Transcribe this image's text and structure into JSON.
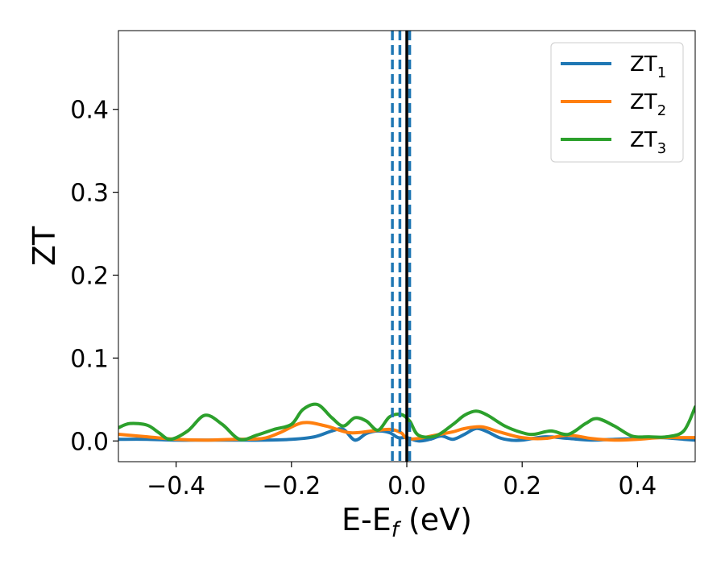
{
  "chart_data": {
    "type": "line",
    "xlabel_main": "E-E",
    "xlabel_sub": "f",
    "xlabel_unit": " (eV)",
    "ylabel": "ZT",
    "xlim": [
      -0.5,
      0.5
    ],
    "ylim": [
      -0.025,
      0.495
    ],
    "xticks": [
      -0.4,
      -0.2,
      0.0,
      0.2,
      0.4
    ],
    "xtick_labels": [
      "−0.4",
      "−0.2",
      "0.0",
      "0.2",
      "0.4"
    ],
    "yticks": [
      0.0,
      0.1,
      0.2,
      0.3,
      0.4
    ],
    "ytick_labels": [
      "0.0",
      "0.1",
      "0.2",
      "0.3",
      "0.4"
    ],
    "grid": false,
    "legend_position": "top-right",
    "vlines": [
      {
        "x": -0.025,
        "style": "dashed",
        "color": "#1f77b4"
      },
      {
        "x": -0.012,
        "style": "dashed",
        "color": "#1f77b4"
      },
      {
        "x": 0.005,
        "style": "dashed",
        "color": "#1f77b4"
      },
      {
        "x": 0.0,
        "style": "solid",
        "color": "#000000"
      }
    ],
    "series": [
      {
        "name": "ZT",
        "name_sub": "1",
        "color": "#1f77b4",
        "x": [
          -0.5,
          -0.45,
          -0.4,
          -0.35,
          -0.3,
          -0.25,
          -0.2,
          -0.16,
          -0.13,
          -0.11,
          -0.09,
          -0.07,
          -0.05,
          -0.03,
          -0.015,
          0.0,
          0.02,
          0.04,
          0.06,
          0.08,
          0.1,
          0.12,
          0.14,
          0.16,
          0.18,
          0.2,
          0.24,
          0.28,
          0.32,
          0.36,
          0.4,
          0.44,
          0.48,
          0.5
        ],
        "y": [
          0.002,
          0.002,
          0.001,
          0.001,
          0.001,
          0.001,
          0.002,
          0.005,
          0.012,
          0.014,
          0.001,
          0.009,
          0.012,
          0.01,
          0.004,
          0.004,
          0.0,
          0.002,
          0.006,
          0.002,
          0.008,
          0.015,
          0.011,
          0.004,
          0.001,
          0.001,
          0.005,
          0.003,
          0.001,
          0.002,
          0.003,
          0.004,
          0.002,
          0.001
        ]
      },
      {
        "name": "ZT",
        "name_sub": "2",
        "color": "#ff7f0e",
        "x": [
          -0.5,
          -0.45,
          -0.4,
          -0.35,
          -0.3,
          -0.25,
          -0.22,
          -0.18,
          -0.14,
          -0.1,
          -0.06,
          -0.03,
          -0.01,
          0.0,
          0.02,
          0.05,
          0.08,
          0.1,
          0.13,
          0.16,
          0.2,
          0.24,
          0.28,
          0.32,
          0.36,
          0.4,
          0.44,
          0.48,
          0.5
        ],
        "y": [
          0.008,
          0.005,
          0.002,
          0.001,
          0.002,
          0.003,
          0.01,
          0.022,
          0.018,
          0.01,
          0.012,
          0.014,
          0.01,
          0.003,
          0.003,
          0.007,
          0.011,
          0.015,
          0.017,
          0.011,
          0.004,
          0.003,
          0.007,
          0.003,
          0.001,
          0.002,
          0.004,
          0.004,
          0.004
        ]
      },
      {
        "name": "ZT",
        "name_sub": "3",
        "color": "#2ca02c",
        "x": [
          -0.5,
          -0.48,
          -0.45,
          -0.43,
          -0.41,
          -0.38,
          -0.35,
          -0.32,
          -0.29,
          -0.26,
          -0.23,
          -0.2,
          -0.18,
          -0.155,
          -0.13,
          -0.11,
          -0.09,
          -0.07,
          -0.05,
          -0.03,
          -0.01,
          0.005,
          0.02,
          0.05,
          0.08,
          0.1,
          0.12,
          0.14,
          0.17,
          0.2,
          0.22,
          0.25,
          0.28,
          0.31,
          0.33,
          0.36,
          0.39,
          0.42,
          0.45,
          0.48,
          0.5
        ],
        "y": [
          0.016,
          0.021,
          0.019,
          0.01,
          0.002,
          0.012,
          0.031,
          0.02,
          0.002,
          0.007,
          0.014,
          0.02,
          0.038,
          0.044,
          0.028,
          0.018,
          0.028,
          0.024,
          0.013,
          0.029,
          0.032,
          0.024,
          0.007,
          0.006,
          0.02,
          0.031,
          0.036,
          0.031,
          0.018,
          0.01,
          0.008,
          0.012,
          0.008,
          0.021,
          0.027,
          0.018,
          0.006,
          0.005,
          0.005,
          0.012,
          0.041
        ]
      }
    ]
  }
}
